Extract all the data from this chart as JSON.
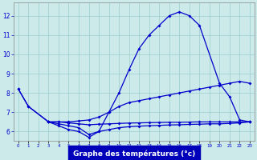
{
  "line1_x": [
    0,
    1,
    3,
    4,
    5,
    6,
    7,
    8,
    9,
    10,
    11,
    12,
    13,
    14,
    15,
    16,
    17,
    18,
    20,
    21,
    22,
    23
  ],
  "line1_y": [
    8.2,
    7.3,
    6.5,
    6.3,
    6.1,
    6.0,
    5.7,
    6.0,
    7.0,
    8.0,
    9.2,
    10.3,
    11.0,
    11.5,
    12.0,
    12.2,
    12.0,
    11.5,
    8.5,
    7.8,
    6.6,
    6.5
  ],
  "line2_x": [
    0,
    1,
    3,
    4,
    5,
    6,
    7,
    8,
    9,
    10,
    11,
    12,
    13,
    14,
    15,
    16,
    17,
    18,
    19,
    20,
    21,
    22,
    23
  ],
  "line2_y": [
    8.2,
    7.3,
    6.5,
    6.5,
    6.5,
    6.55,
    6.6,
    6.75,
    7.0,
    7.3,
    7.5,
    7.6,
    7.7,
    7.8,
    7.9,
    8.0,
    8.1,
    8.2,
    8.3,
    8.4,
    8.5,
    8.6,
    8.5
  ],
  "line3_x": [
    3,
    4,
    5,
    6,
    7,
    8,
    9,
    10,
    11,
    12,
    13,
    14,
    15,
    16,
    17,
    18,
    19,
    20,
    21,
    22,
    23
  ],
  "line3_y": [
    6.5,
    6.5,
    6.45,
    6.4,
    6.35,
    6.38,
    6.4,
    6.42,
    6.44,
    6.45,
    6.46,
    6.47,
    6.48,
    6.48,
    6.49,
    6.5,
    6.5,
    6.5,
    6.5,
    6.5,
    6.5
  ],
  "line4_x": [
    3,
    4,
    5,
    6,
    7,
    8,
    9,
    10,
    11,
    12,
    13,
    14,
    15,
    16,
    17,
    18,
    19,
    20,
    21,
    22,
    23
  ],
  "line4_y": [
    6.5,
    6.4,
    6.3,
    6.2,
    5.85,
    6.0,
    6.1,
    6.2,
    6.25,
    6.28,
    6.3,
    6.32,
    6.34,
    6.35,
    6.37,
    6.38,
    6.4,
    6.4,
    6.42,
    6.45,
    6.5
  ],
  "line_color": "#0000cc",
  "bg_color": "#cceaea",
  "grid_color": "#99cccc",
  "xlabel": "Graphe des températures (°c)",
  "xlabel_bg": "#0000bb",
  "xlabel_color": "#ffffff",
  "ylabel_ticks": [
    6,
    7,
    8,
    9,
    10,
    11,
    12
  ],
  "xtick_labels": [
    "0",
    "1",
    "2",
    "3",
    "4",
    "5",
    "6",
    "7",
    "8",
    "9",
    "10",
    "11",
    "12",
    "13",
    "14",
    "15",
    "16",
    "17",
    "18",
    "19",
    "20",
    "21",
    "22",
    "23"
  ],
  "xlim": [
    -0.5,
    23.5
  ],
  "ylim": [
    5.5,
    12.7
  ],
  "marker": "D",
  "markersize": 2.0,
  "linewidth": 0.9
}
